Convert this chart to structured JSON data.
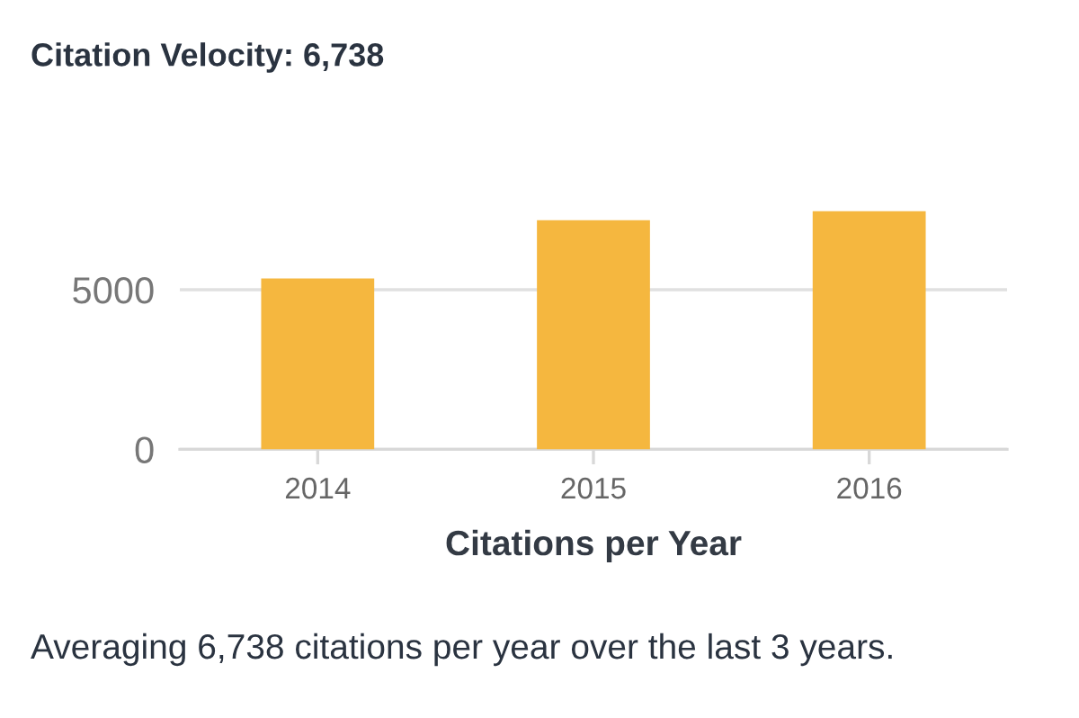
{
  "chart_data": {
    "type": "bar",
    "title": "Citation Velocity: 6,738",
    "categories": [
      "2014",
      "2015",
      "2016"
    ],
    "values": [
      5350,
      7180,
      7460
    ],
    "color": "#f5b73f",
    "xlabel": "Citations per Year",
    "ylim": [
      0,
      7600
    ],
    "yticks": [
      0,
      5000
    ],
    "grid": "y",
    "annotations": [
      "Averaging 6,738 citations per year over the last 3 years."
    ]
  }
}
